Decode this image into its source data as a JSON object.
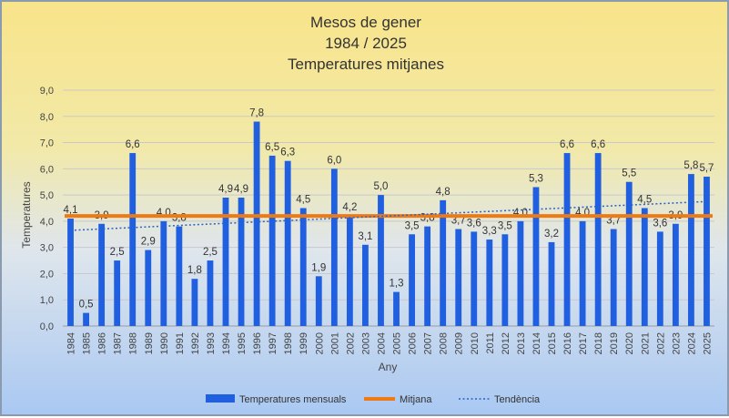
{
  "chart_data": {
    "type": "bar",
    "title": [
      "Mesos de gener",
      "1984 / 2025",
      "Temperatures mitjanes"
    ],
    "xlabel": "Any",
    "ylabel": "Temperatures",
    "ylim": [
      0,
      9
    ],
    "ytick_step": 1,
    "ytick_labels": [
      "0,0",
      "1,0",
      "2,0",
      "3,0",
      "4,0",
      "5,0",
      "6,0",
      "7,0",
      "8,0",
      "9,0"
    ],
    "categories": [
      "1984",
      "1985",
      "1986",
      "1987",
      "1988",
      "1989",
      "1990",
      "1991",
      "1992",
      "1993",
      "1994",
      "1995",
      "1996",
      "1997",
      "1998",
      "1999",
      "2000",
      "2001",
      "2002",
      "2003",
      "2004",
      "2005",
      "2006",
      "2007",
      "2008",
      "2009",
      "2010",
      "2011",
      "2012",
      "2013",
      "2014",
      "2015",
      "2016",
      "2017",
      "2018",
      "2019",
      "2020",
      "2021",
      "2022",
      "2023",
      "2024",
      "2025"
    ],
    "series": [
      {
        "name": "Temperatures mensuals",
        "kind": "bar",
        "color": "#1f5fe0",
        "values": [
          4.1,
          0.5,
          3.9,
          2.5,
          6.6,
          2.9,
          4.0,
          3.8,
          1.8,
          2.5,
          4.9,
          4.9,
          7.8,
          6.5,
          6.3,
          4.5,
          1.9,
          6.0,
          4.2,
          3.1,
          5.0,
          1.3,
          3.5,
          3.8,
          4.8,
          3.7,
          3.6,
          3.3,
          3.5,
          4.0,
          5.3,
          3.2,
          6.6,
          4.0,
          6.6,
          3.7,
          5.5,
          4.5,
          3.6,
          3.9,
          5.8,
          5.7
        ],
        "labels": [
          "4,1",
          "0,5",
          "3,9",
          "2,5",
          "6,6",
          "2,9",
          "4,0",
          "3,8",
          "1,8",
          "2,5",
          "4,9",
          "4,9",
          "7,8",
          "6,5",
          "6,3",
          "4,5",
          "1,9",
          "6,0",
          "4,2",
          "3,1",
          "5,0",
          "1,3",
          "3,5",
          "3,8",
          "4,8",
          "3,7",
          "3,6",
          "3,3",
          "3,5",
          "4,0",
          "5,3",
          "3,2",
          "6,6",
          "4,0",
          "6,6",
          "3,7",
          "5,5",
          "4,5",
          "3,6",
          "3,9",
          "5,8",
          "5,7"
        ]
      },
      {
        "name": "Mitjana",
        "kind": "hline",
        "color": "#f07a12",
        "value": 4.2
      },
      {
        "name": "Tendència",
        "kind": "trendline",
        "color": "#2a62c9",
        "start": 3.65,
        "end": 4.75
      }
    ],
    "grid": true,
    "legend_position": "bottom"
  }
}
